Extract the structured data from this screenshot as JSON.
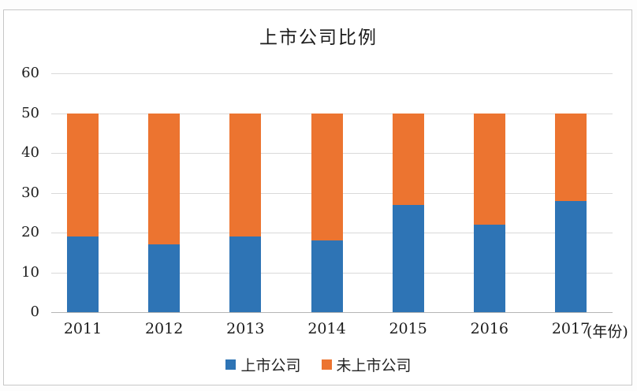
{
  "chart": {
    "title": "上市公司比例"
  },
  "chart_data": {
    "type": "bar",
    "stacked": true,
    "title": "上市公司比例",
    "categories": [
      "2011",
      "2012",
      "2013",
      "2014",
      "2015",
      "2016",
      "2017"
    ],
    "series": [
      {
        "name": "上市公司",
        "color": "#2e74b5",
        "values": [
          19,
          17,
          19,
          18,
          27,
          22,
          28
        ]
      },
      {
        "name": "未上市公司",
        "color": "#ec7430",
        "values": [
          31,
          33,
          31,
          32,
          23,
          28,
          22
        ]
      }
    ],
    "xlabel": "(年份)",
    "ylabel": "",
    "ylim": [
      0,
      60
    ],
    "ytick_step": 10,
    "yticks": [
      0,
      10,
      20,
      30,
      40,
      50,
      60
    ],
    "grid": true,
    "legend_position": "bottom",
    "colors": {
      "gridline": "#d9d9d9",
      "axis_line": "#b5b5b5",
      "text": "#1c1c1c",
      "frame_border": "#c7c7c7",
      "background": "#ffffff"
    }
  }
}
